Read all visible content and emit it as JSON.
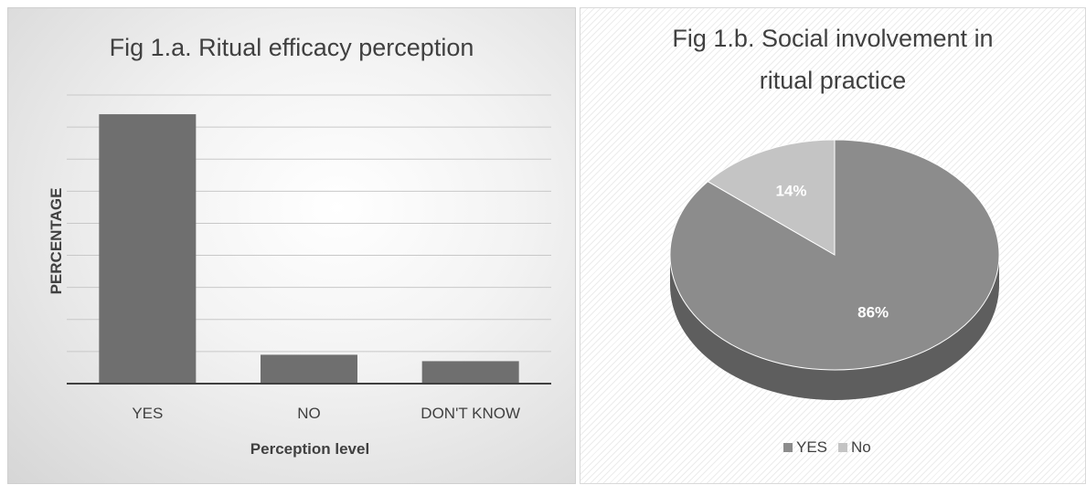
{
  "chart_data": [
    {
      "type": "bar",
      "title": "Fig 1.a. Ritual efficacy perception",
      "xlabel": "Perception level",
      "ylabel": "PERCENTAGE",
      "categories": [
        "YES",
        "NO",
        "DON'T KNOW"
      ],
      "values": [
        84,
        9,
        7
      ],
      "ylim": [
        0,
        90
      ],
      "grid": true,
      "y_tick_labels_shown": false,
      "colors": {
        "bar": "#6f6f6f",
        "grid": "#c8c8c8",
        "axis": "#404040"
      }
    },
    {
      "type": "pie",
      "title_lines": [
        "Fig 1.b. Social involvement in",
        "ritual practice"
      ],
      "categories": [
        "YES",
        "No"
      ],
      "values": [
        86,
        14
      ],
      "data_labels": [
        "86%",
        "14%"
      ],
      "legend": "bottom",
      "colors": {
        "YES": "#8c8c8c",
        "No": "#c4c4c4",
        "YES_side": "#5e5e5e",
        "No_side": "#8e8e8e"
      }
    }
  ]
}
